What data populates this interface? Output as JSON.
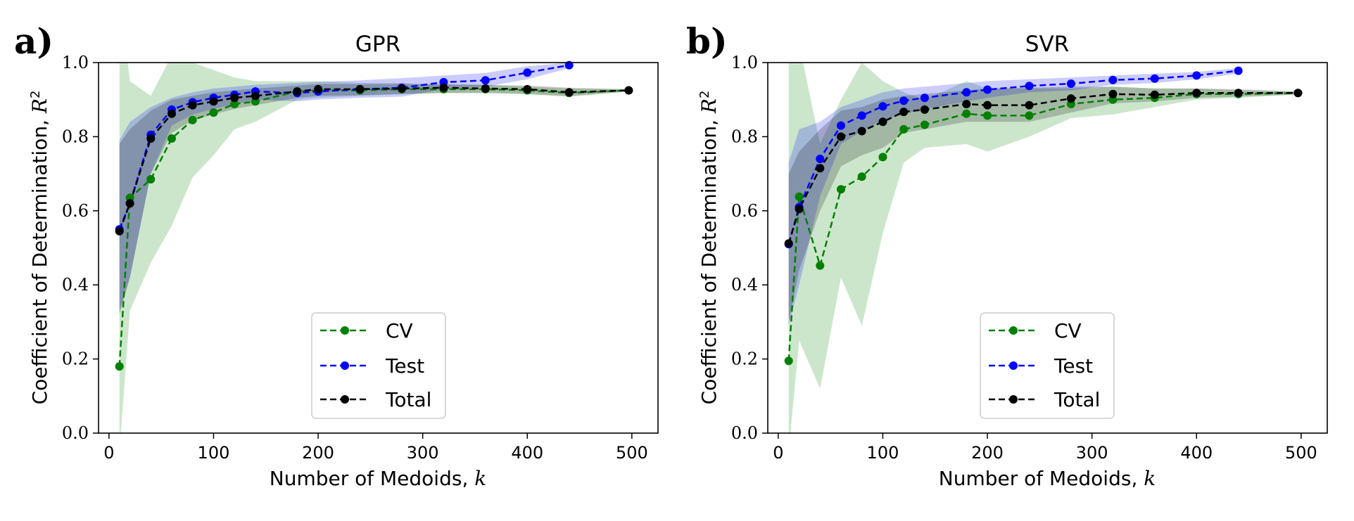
{
  "chart_data": [
    {
      "type": "line",
      "panel_label": "a)",
      "title": "GPR",
      "xlabel": "Number of Medoids,",
      "xlabel_var": "k",
      "ylabel": "Coefficient of Determination,",
      "ylabel_var": "R",
      "ylabel_sup": "2",
      "xlim": [
        -10,
        525
      ],
      "ylim": [
        0.0,
        1.0
      ],
      "xticks": [
        "0",
        "100",
        "200",
        "300",
        "400",
        "500"
      ],
      "yticks": [
        "0.0",
        "0.2",
        "0.4",
        "0.6",
        "0.8",
        "1.0"
      ],
      "legend_position": "lower-center",
      "series": [
        {
          "name": "CV",
          "color": "#008000",
          "x": [
            10,
            20,
            40,
            60,
            80,
            100,
            120,
            140,
            180,
            200,
            240,
            280,
            320,
            360,
            400,
            440,
            497
          ],
          "y": [
            0.18,
            0.635,
            0.685,
            0.795,
            0.845,
            0.865,
            0.888,
            0.895,
            0.922,
            0.925,
            0.925,
            0.928,
            0.928,
            0.928,
            0.925,
            0.918,
            0.925
          ],
          "band_upper": [
            1.2,
            0.95,
            0.91,
            1.02,
            1.0,
            0.98,
            0.96,
            0.95,
            0.95,
            0.95,
            0.945,
            0.945,
            0.94,
            0.94,
            0.935,
            0.93,
            0.928
          ],
          "band_lower": [
            -0.05,
            0.33,
            0.46,
            0.56,
            0.69,
            0.75,
            0.82,
            0.84,
            0.9,
            0.905,
            0.91,
            0.915,
            0.918,
            0.918,
            0.915,
            0.91,
            0.922
          ]
        },
        {
          "name": "Test",
          "color": "#0000ff",
          "x": [
            10,
            20,
            40,
            60,
            80,
            100,
            120,
            140,
            180,
            200,
            240,
            280,
            320,
            360,
            400,
            440
          ],
          "y": [
            0.55,
            0.62,
            0.805,
            0.873,
            0.893,
            0.905,
            0.913,
            0.922,
            0.918,
            0.922,
            0.928,
            0.932,
            0.947,
            0.952,
            0.973,
            0.993
          ],
          "band_upper": [
            0.79,
            0.84,
            0.88,
            0.905,
            0.92,
            0.93,
            0.935,
            0.94,
            0.945,
            0.948,
            0.952,
            0.958,
            0.965,
            0.972,
            0.99,
            1.0
          ],
          "band_lower": [
            0.33,
            0.42,
            0.7,
            0.83,
            0.86,
            0.875,
            0.888,
            0.9,
            0.895,
            0.9,
            0.905,
            0.908,
            0.928,
            0.935,
            0.955,
            0.985
          ]
        },
        {
          "name": "Total",
          "color": "#000000",
          "x": [
            10,
            20,
            40,
            60,
            80,
            100,
            120,
            140,
            180,
            200,
            240,
            280,
            320,
            360,
            400,
            440,
            497
          ],
          "y": [
            0.545,
            0.62,
            0.795,
            0.862,
            0.885,
            0.895,
            0.905,
            0.91,
            0.922,
            0.928,
            0.928,
            0.93,
            0.932,
            0.93,
            0.928,
            0.92,
            0.925
          ],
          "band_upper": [
            0.78,
            0.82,
            0.87,
            0.9,
            0.91,
            0.92,
            0.925,
            0.93,
            0.938,
            0.942,
            0.942,
            0.942,
            0.942,
            0.94,
            0.938,
            0.932,
            0.928
          ],
          "band_lower": [
            0.32,
            0.42,
            0.7,
            0.81,
            0.845,
            0.86,
            0.875,
            0.885,
            0.905,
            0.91,
            0.912,
            0.915,
            0.918,
            0.918,
            0.915,
            0.908,
            0.922
          ]
        }
      ]
    },
    {
      "type": "line",
      "panel_label": "b)",
      "title": "SVR",
      "xlabel": "Number of Medoids,",
      "xlabel_var": "k",
      "ylabel": "Coefficient of Determination,",
      "ylabel_var": "R",
      "ylabel_sup": "2",
      "xlim": [
        -10,
        525
      ],
      "ylim": [
        0.0,
        1.0
      ],
      "xticks": [
        "0",
        "100",
        "200",
        "300",
        "400",
        "500"
      ],
      "yticks": [
        "0.0",
        "0.2",
        "0.4",
        "0.6",
        "0.8",
        "1.0"
      ],
      "legend_position": "lower-center",
      "series": [
        {
          "name": "CV",
          "color": "#008000",
          "x": [
            10,
            20,
            40,
            60,
            80,
            100,
            120,
            140,
            180,
            200,
            240,
            280,
            320,
            360,
            400,
            440,
            497
          ],
          "y": [
            0.195,
            0.638,
            0.452,
            0.658,
            0.692,
            0.745,
            0.82,
            0.832,
            0.862,
            0.857,
            0.857,
            0.888,
            0.9,
            0.905,
            0.915,
            0.915,
            0.918
          ],
          "band_upper": [
            1.2,
            1.05,
            0.78,
            0.9,
            1.0,
            0.95,
            0.92,
            0.9,
            0.95,
            0.93,
            0.93,
            0.93,
            0.935,
            0.93,
            0.93,
            0.925,
            0.922
          ],
          "band_lower": [
            -0.05,
            0.25,
            0.12,
            0.42,
            0.29,
            0.54,
            0.73,
            0.77,
            0.78,
            0.76,
            0.8,
            0.85,
            0.86,
            0.88,
            0.9,
            0.905,
            0.914
          ]
        },
        {
          "name": "Test",
          "color": "#0000ff",
          "x": [
            10,
            20,
            40,
            60,
            80,
            100,
            120,
            140,
            180,
            200,
            240,
            280,
            320,
            360,
            400,
            440
          ],
          "y": [
            0.51,
            0.61,
            0.74,
            0.83,
            0.857,
            0.882,
            0.897,
            0.905,
            0.92,
            0.927,
            0.937,
            0.943,
            0.953,
            0.957,
            0.965,
            0.978
          ],
          "band_upper": [
            0.73,
            0.82,
            0.84,
            0.88,
            0.9,
            0.92,
            0.93,
            0.935,
            0.945,
            0.95,
            0.955,
            0.96,
            0.965,
            0.97,
            0.975,
            0.985
          ],
          "band_lower": [
            0.29,
            0.4,
            0.64,
            0.78,
            0.815,
            0.845,
            0.86,
            0.875,
            0.895,
            0.905,
            0.92,
            0.925,
            0.94,
            0.945,
            0.955,
            0.97
          ]
        },
        {
          "name": "Total",
          "color": "#000000",
          "x": [
            10,
            20,
            40,
            60,
            80,
            100,
            120,
            140,
            180,
            200,
            240,
            280,
            320,
            360,
            400,
            440,
            497
          ],
          "y": [
            0.512,
            0.605,
            0.715,
            0.8,
            0.815,
            0.84,
            0.867,
            0.873,
            0.888,
            0.885,
            0.885,
            0.903,
            0.915,
            0.913,
            0.918,
            0.918,
            0.918
          ],
          "band_upper": [
            0.7,
            0.76,
            0.82,
            0.87,
            0.88,
            0.9,
            0.91,
            0.915,
            0.925,
            0.93,
            0.932,
            0.935,
            0.935,
            0.93,
            0.93,
            0.928,
            0.922
          ],
          "band_lower": [
            0.3,
            0.44,
            0.6,
            0.72,
            0.75,
            0.77,
            0.81,
            0.82,
            0.84,
            0.84,
            0.84,
            0.865,
            0.89,
            0.895,
            0.905,
            0.908,
            0.914
          ]
        }
      ]
    }
  ]
}
